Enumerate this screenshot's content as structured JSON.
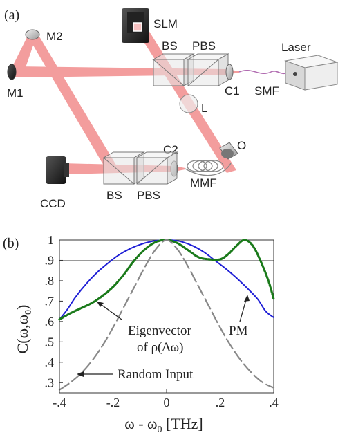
{
  "panel_a": {
    "label": "(a)",
    "components": {
      "slm": "SLM",
      "laser": "Laser",
      "m1": "M1",
      "m2": "M2",
      "bs_top": "BS",
      "pbs_top": "PBS",
      "c1": "C1",
      "smf": "SMF",
      "l": "L",
      "o": "O",
      "c2": "C2",
      "mmf": "MMF",
      "ccd": "CCD",
      "bs_bottom": "BS",
      "pbs_bottom": "PBS"
    }
  },
  "panel_b": {
    "label": "(b)",
    "annotations": {
      "eigen_line1": "Eigenvector",
      "eigen_line2_prefix": "of ρ(Δω)",
      "pm": "PM",
      "random": "Random Input"
    }
  },
  "colors": {
    "beam": "#f28c8c",
    "pm": "#1f1fd6",
    "eigen": "#1a7a1a",
    "random": "#888888",
    "ref_line": "#9a9a9a"
  },
  "chart_data": {
    "type": "line",
    "ylabel_main": "C(ω,ω",
    "ylabel_sub": "0",
    "ylabel_end": ")",
    "xlabel_main": "ω - ω",
    "xlabel_sub": "0",
    "xlabel_end": " [THz]",
    "xlim": [
      -0.4,
      0.4
    ],
    "ylim": [
      0.25,
      1.0
    ],
    "xticks": [
      -0.4,
      -0.2,
      0,
      0.2,
      0.4
    ],
    "xtick_labels": [
      "-.4",
      "-.2",
      "0",
      ".2",
      ".4"
    ],
    "yticks": [
      0.3,
      0.4,
      0.5,
      0.6,
      0.7,
      0.8,
      0.9,
      1.0
    ],
    "ytick_labels": [
      ".3",
      ".4",
      ".5",
      ".6",
      ".7",
      ".8",
      ".9",
      "1"
    ],
    "reference_line_y": 0.9,
    "series": [
      {
        "name": "PM",
        "style": "solid",
        "x": [
          -0.4,
          -0.37,
          -0.34,
          -0.3,
          -0.26,
          -0.22,
          -0.18,
          -0.14,
          -0.1,
          -0.06,
          -0.03,
          0,
          0.03,
          0.06,
          0.1,
          0.14,
          0.18,
          0.22,
          0.26,
          0.3,
          0.34,
          0.37,
          0.4
        ],
        "y": [
          0.61,
          0.66,
          0.72,
          0.785,
          0.84,
          0.885,
          0.925,
          0.955,
          0.977,
          0.992,
          0.998,
          1.0,
          0.998,
          0.99,
          0.97,
          0.94,
          0.9,
          0.86,
          0.815,
          0.765,
          0.71,
          0.65,
          0.62
        ]
      },
      {
        "name": "Eigenvector of ρ(Δω)",
        "style": "dotted",
        "x": [
          -0.4,
          -0.36,
          -0.32,
          -0.28,
          -0.24,
          -0.2,
          -0.16,
          -0.12,
          -0.08,
          -0.04,
          0,
          0.04,
          0.08,
          0.12,
          0.16,
          0.2,
          0.23,
          0.26,
          0.29,
          0.32,
          0.35,
          0.38,
          0.4
        ],
        "y": [
          0.61,
          0.64,
          0.665,
          0.69,
          0.725,
          0.77,
          0.83,
          0.9,
          0.955,
          0.99,
          1.0,
          0.985,
          0.95,
          0.915,
          0.905,
          0.905,
          0.93,
          0.97,
          1.0,
          0.975,
          0.9,
          0.8,
          0.71
        ]
      },
      {
        "name": "Random Input",
        "style": "dashed",
        "x": [
          -0.4,
          -0.36,
          -0.32,
          -0.28,
          -0.24,
          -0.2,
          -0.16,
          -0.12,
          -0.08,
          -0.04,
          0,
          0.04,
          0.08,
          0.12,
          0.16,
          0.2,
          0.24,
          0.28,
          0.32,
          0.36,
          0.4
        ],
        "y": [
          0.265,
          0.3,
          0.345,
          0.405,
          0.48,
          0.57,
          0.67,
          0.77,
          0.87,
          0.955,
          1.0,
          0.955,
          0.87,
          0.77,
          0.67,
          0.57,
          0.48,
          0.405,
          0.345,
          0.3,
          0.275
        ]
      }
    ]
  }
}
